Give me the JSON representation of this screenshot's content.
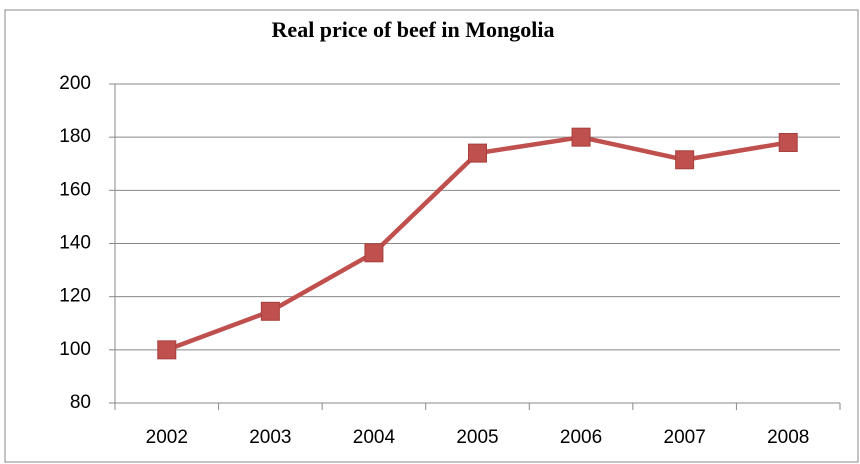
{
  "chart_data": {
    "type": "line",
    "title": "Real price of beef in Mongolia",
    "categories": [
      "2002",
      "2003",
      "2004",
      "2005",
      "2006",
      "2007",
      "2008"
    ],
    "series": [
      {
        "name": "Real price of beef",
        "color": "#c0504d",
        "values": [
          100,
          114.5,
          136.5,
          174,
          180,
          171.5,
          178
        ]
      }
    ],
    "ylim": [
      80,
      200
    ],
    "yticks": [
      80,
      100,
      120,
      140,
      160,
      180,
      200
    ],
    "grid": true
  }
}
